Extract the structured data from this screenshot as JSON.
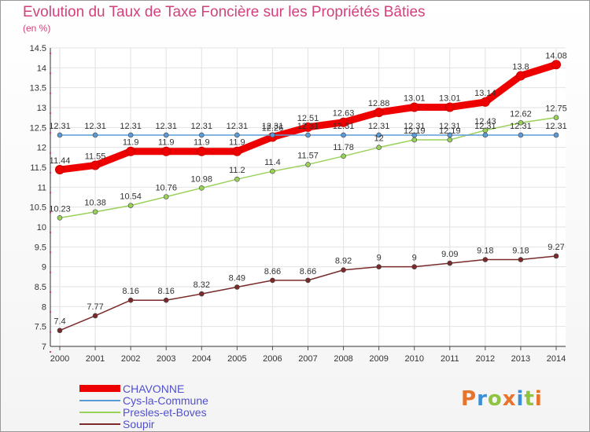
{
  "header": {
    "title": "Evolution du Taux de Taxe Foncière sur les Propriétés Bâties",
    "unit": "(en %)"
  },
  "logo": {
    "text": "Proxiti",
    "letter_colors": [
      "#e8732a",
      "#3b8fd6",
      "#8fc440",
      "#e8732a",
      "#3b8fd6",
      "#8fc440",
      "#e8732a"
    ]
  },
  "chart_data": {
    "type": "line",
    "title": "Evolution du Taux de Taxe Foncière sur les Propriétés Bâties",
    "ylabel": "(en %)",
    "xlabel": "",
    "ylim": [
      7,
      14.5
    ],
    "grid": true,
    "legend_position": "bottom-left",
    "x": [
      "2000",
      "2001",
      "2002",
      "2003",
      "2004",
      "2005",
      "2006",
      "2007",
      "2008",
      "2009",
      "2010",
      "2011",
      "2012",
      "2013",
      "2014"
    ],
    "yticks": [
      "7",
      "7.5",
      "8",
      "8.5",
      "9",
      "9.5",
      "10",
      "10.5",
      "11",
      "11.5",
      "12",
      "12.5",
      "13",
      "13.5",
      "14",
      "14.5"
    ],
    "series": [
      {
        "name": "CHAVONNE",
        "color": "#ee0000",
        "width": "thick",
        "values": [
          11.44,
          11.55,
          11.9,
          11.9,
          11.9,
          11.9,
          12.26,
          12.51,
          12.63,
          12.88,
          13.01,
          13.01,
          13.14,
          13.8,
          14.08
        ],
        "labels": [
          "11.44",
          "11.55",
          "11.9",
          "11.9",
          "11.9",
          "11.9",
          "12.26",
          "12.51",
          "12.63",
          "12.88",
          "13.01",
          "13.01",
          "13.14",
          "13.8",
          "14.08"
        ]
      },
      {
        "name": "Cys-la-Commune",
        "color": "#5b9bd5",
        "width": "thin",
        "values": [
          12.31,
          12.31,
          12.31,
          12.31,
          12.31,
          12.31,
          12.31,
          12.31,
          12.31,
          12.31,
          12.31,
          12.31,
          12.31,
          12.31,
          12.31
        ],
        "labels": [
          "12.31",
          "12.31",
          "12.31",
          "12.31",
          "12.31",
          "12.31",
          "12.31",
          "12.31",
          "12.31",
          "12.31",
          "12.31",
          "12.31",
          "12.31",
          "12.31",
          "12.31"
        ]
      },
      {
        "name": "Presles-et-Boves",
        "color": "#9ad15a",
        "width": "thin",
        "values": [
          10.23,
          10.38,
          10.54,
          10.76,
          10.98,
          11.2,
          11.4,
          11.57,
          11.78,
          12.0,
          12.19,
          12.19,
          12.43,
          12.62,
          12.75
        ],
        "labels": [
          "10.23",
          "10.38",
          "10.54",
          "10.76",
          "10.98",
          "11.2",
          "11.4",
          "11.57",
          "11.78",
          "12",
          "12.19",
          "12.19",
          "12.43",
          "12.62",
          "12.75"
        ]
      },
      {
        "name": "Soupir",
        "color": "#7a2a2a",
        "width": "thin",
        "values": [
          7.4,
          7.77,
          8.16,
          8.16,
          8.32,
          8.49,
          8.66,
          8.66,
          8.92,
          9.0,
          9.0,
          9.09,
          9.18,
          9.18,
          9.27
        ],
        "labels": [
          "7.4",
          "7.77",
          "8.16",
          "8.16",
          "8.32",
          "8.49",
          "8.66",
          "8.66",
          "8.92",
          "9",
          "9",
          "9.09",
          "9.18",
          "9.18",
          "9.27"
        ]
      }
    ]
  }
}
